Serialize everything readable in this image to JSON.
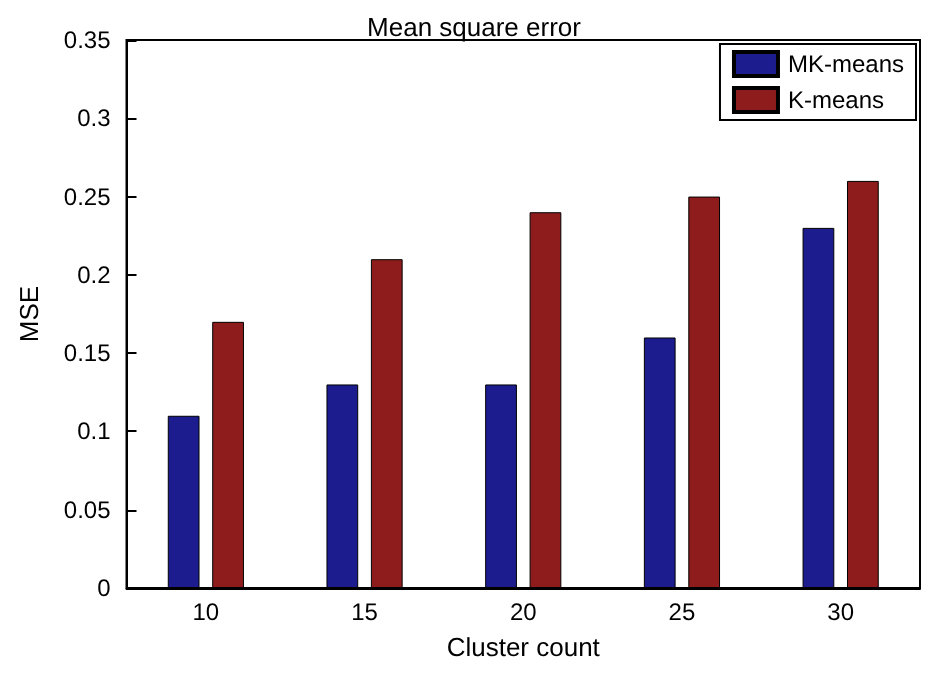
{
  "chart_data": {
    "type": "bar",
    "title": "Mean square error",
    "xlabel": "Cluster count",
    "ylabel": "MSE",
    "categories": [
      "10",
      "15",
      "20",
      "25",
      "30"
    ],
    "series": [
      {
        "name": "MK-means",
        "color": "#1c1c8e",
        "values": [
          0.11,
          0.13,
          0.13,
          0.16,
          0.23
        ]
      },
      {
        "name": "K-means",
        "color": "#8e1c1c",
        "values": [
          0.17,
          0.21,
          0.24,
          0.25,
          0.26
        ]
      }
    ],
    "ylim": [
      0,
      0.35
    ],
    "yticks": [
      0,
      0.05,
      0.1,
      0.15,
      0.2,
      0.25,
      0.3,
      0.35
    ],
    "grid": false,
    "legend": "top right"
  }
}
